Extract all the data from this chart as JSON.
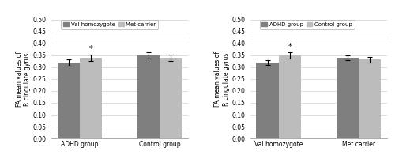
{
  "left_chart": {
    "ylabel": "FA mean values of\nR cingulate gyrus",
    "groups": [
      "ADHD group",
      "Control group"
    ],
    "series": [
      "Val homozygote",
      "Met carrier"
    ],
    "values": [
      [
        0.32,
        0.34
      ],
      [
        0.35,
        0.34
      ]
    ],
    "errors": [
      [
        0.013,
        0.013
      ],
      [
        0.013,
        0.013
      ]
    ],
    "bar_colors": [
      "#7f7f7f",
      "#bcbcbc"
    ],
    "star_group": 0,
    "star_series": 1,
    "ylim": [
      0,
      0.5
    ],
    "yticks": [
      0,
      0.05,
      0.1,
      0.15,
      0.2,
      0.25,
      0.3,
      0.35,
      0.4,
      0.45,
      0.5
    ]
  },
  "right_chart": {
    "ylabel": "FA mean values of\nR cingulate gyrus",
    "groups": [
      "Val homozygote",
      "Met carrier"
    ],
    "series": [
      "ADHD group",
      "Control group"
    ],
    "values": [
      [
        0.32,
        0.35
      ],
      [
        0.34,
        0.332
      ]
    ],
    "errors": [
      [
        0.011,
        0.013
      ],
      [
        0.011,
        0.011
      ]
    ],
    "bar_colors": [
      "#7f7f7f",
      "#bcbcbc"
    ],
    "star_group": 0,
    "star_series": 1,
    "ylim": [
      0,
      0.5
    ],
    "yticks": [
      0,
      0.05,
      0.1,
      0.15,
      0.2,
      0.25,
      0.3,
      0.35,
      0.4,
      0.45,
      0.5
    ]
  }
}
